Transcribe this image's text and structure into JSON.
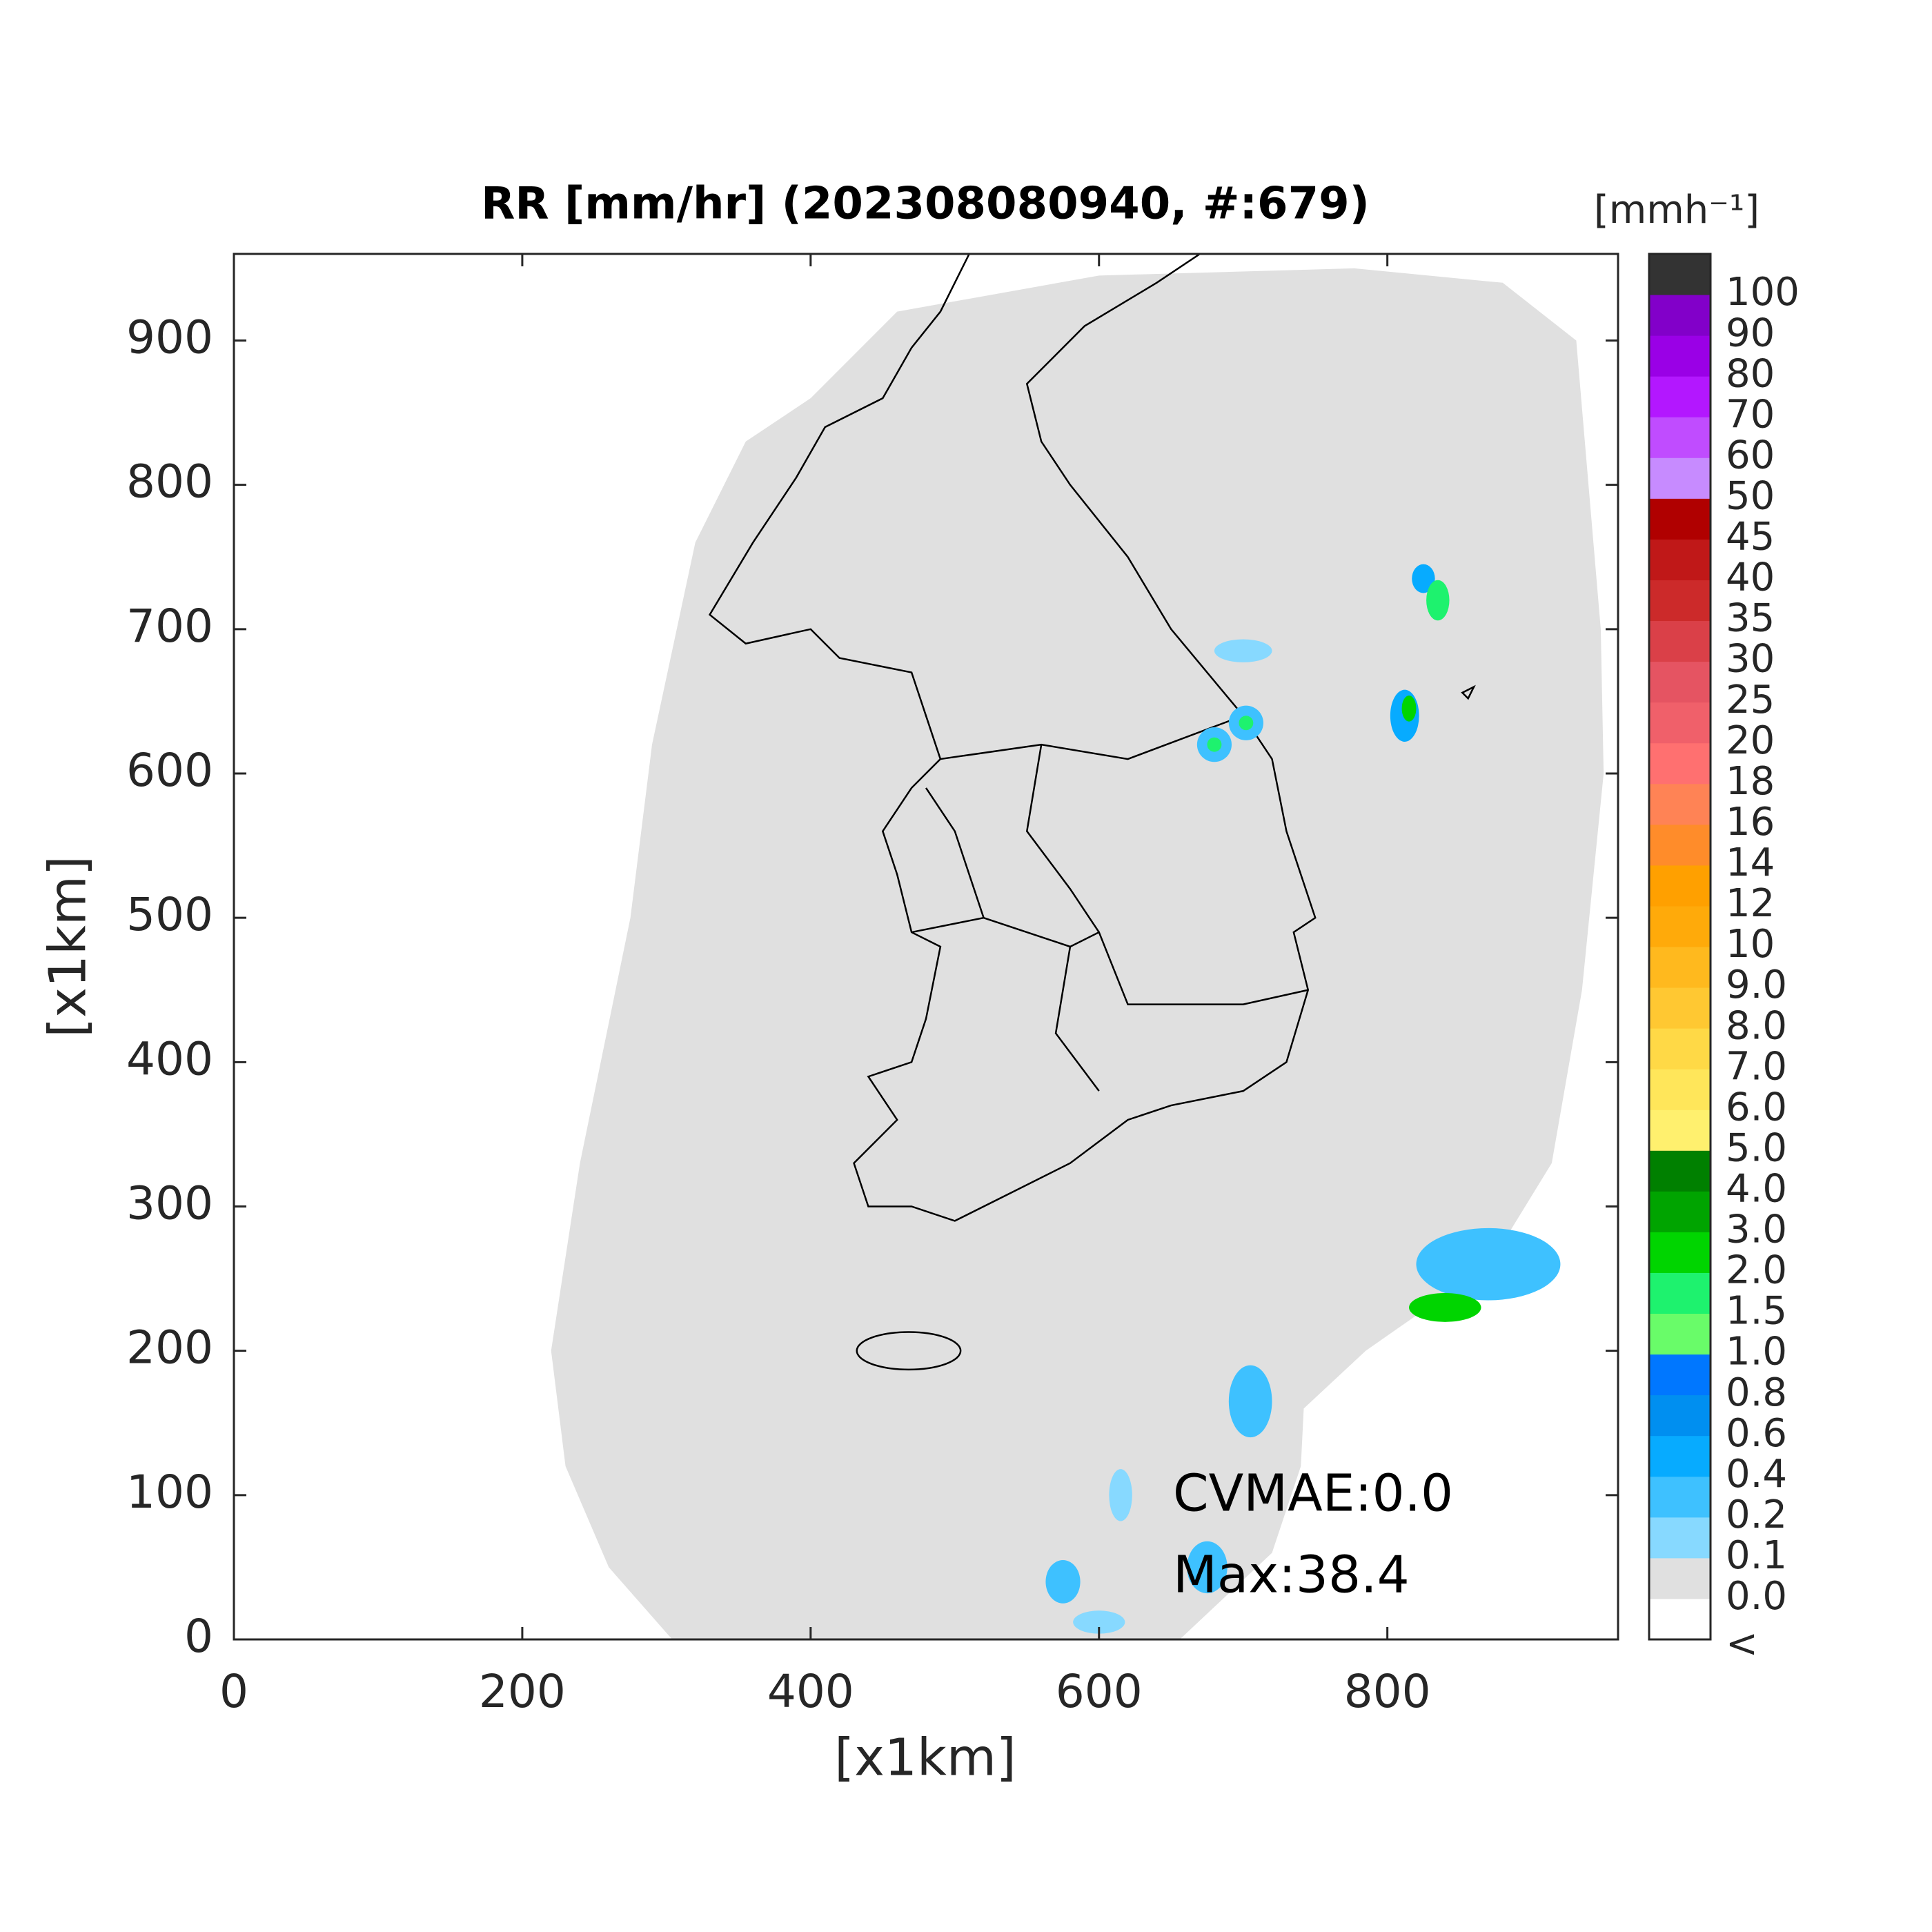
{
  "chart_data": {
    "type": "map",
    "title": "RR [mm/hr] (202308080940, #:679)",
    "xlabel": "[x1km]",
    "ylabel": "[x1km]",
    "xlim": [
      0,
      960
    ],
    "ylim": [
      0,
      960
    ],
    "xticks": [
      0,
      200,
      400,
      600,
      800
    ],
    "yticks": [
      0,
      100,
      200,
      300,
      400,
      500,
      600,
      700,
      800,
      900
    ],
    "annotations": [
      "CVMAE:0.0",
      "Max:38.4"
    ],
    "colorbar": {
      "label": "[mmh⁻¹]",
      "labels": [
        "<",
        "0.0",
        "0.1",
        "0.2",
        "0.4",
        "0.6",
        "0.8",
        "1.0",
        "1.5",
        "2.0",
        "3.0",
        "4.0",
        "5.0",
        "6.0",
        "7.0",
        "8.0",
        "9.0",
        "10",
        "12",
        "14",
        "16",
        "18",
        "20",
        "25",
        "30",
        "35",
        "40",
        "45",
        "50",
        "60",
        "70",
        "80",
        "90",
        "100"
      ],
      "colors": [
        "#ffffff",
        "#e0e0e0",
        "#87d9ff",
        "#3ec1ff",
        "#07abff",
        "#008ff0",
        "#0077ff",
        "#69fc69",
        "#1ef26e",
        "#00d500",
        "#00a400",
        "#008000",
        "#fff06e",
        "#ffe65a",
        "#ffd946",
        "#ffc832",
        "#ffb91e",
        "#ffaa0a",
        "#ffa000",
        "#ff8c2a",
        "#ff8355",
        "#ff7070",
        "#f0606a",
        "#e55462",
        "#da4048",
        "#cc2a2a",
        "#c01818",
        "#b00000",
        "#c78bff",
        "#c04cff",
        "#b317ff",
        "#9a00e6",
        "#8200c9",
        "#333333"
      ]
    }
  }
}
